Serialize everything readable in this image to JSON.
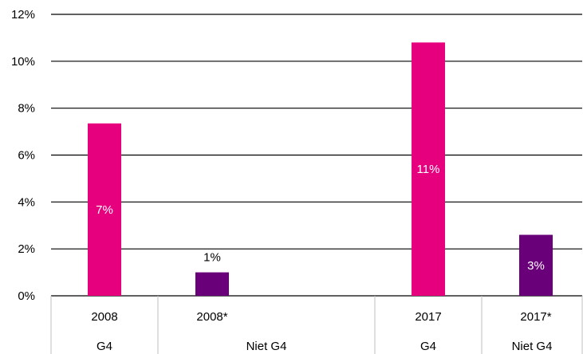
{
  "chart_data": {
    "type": "bar",
    "y_ticks": [
      "0%",
      "2%",
      "4%",
      "6%",
      "8%",
      "10%",
      "12%"
    ],
    "ylim": [
      0,
      12
    ],
    "grid": true,
    "bars": [
      {
        "year": "2008",
        "group": "G4",
        "value": 7.35,
        "label": "7%",
        "color": "#e6007e",
        "label_color": "#ffffff",
        "label_pos": "inside"
      },
      {
        "year": "2008*",
        "group": "Niet G4",
        "value": 1.0,
        "label": "1%",
        "color": "#6a0079",
        "label_color": "#000000",
        "label_pos": "above"
      },
      {
        "year": "2017",
        "group": "G4",
        "value": 10.8,
        "label": "11%",
        "color": "#e6007e",
        "label_color": "#ffffff",
        "label_pos": "inside"
      },
      {
        "year": "2017*",
        "group": "Niet G4",
        "value": 2.6,
        "label": "3%",
        "color": "#6a0079",
        "label_color": "#ffffff",
        "label_pos": "inside"
      }
    ]
  }
}
